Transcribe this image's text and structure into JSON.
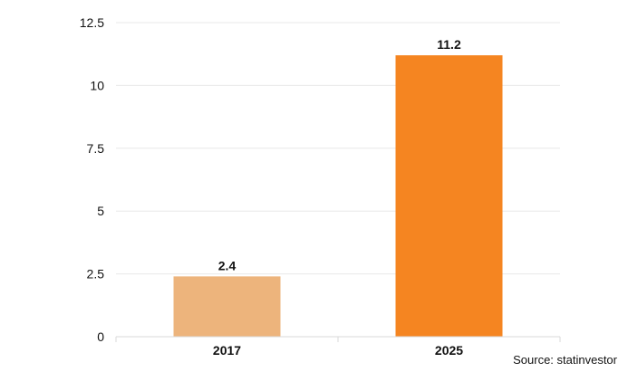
{
  "chart_data": {
    "type": "bar",
    "categories": [
      "2017",
      "2025"
    ],
    "values": [
      2.4,
      11.2
    ],
    "colors": [
      "#edb47c",
      "#f58521"
    ],
    "ylim": [
      0,
      12.5
    ],
    "yticks": [
      "0",
      "2.5",
      "5",
      "7.5",
      "10",
      "12.5"
    ],
    "ytick_values": [
      0,
      2.5,
      5,
      7.5,
      10,
      12.5
    ],
    "data_labels": [
      "2.4",
      "11.2"
    ],
    "grid": true
  },
  "source": "Source: statinvestor"
}
